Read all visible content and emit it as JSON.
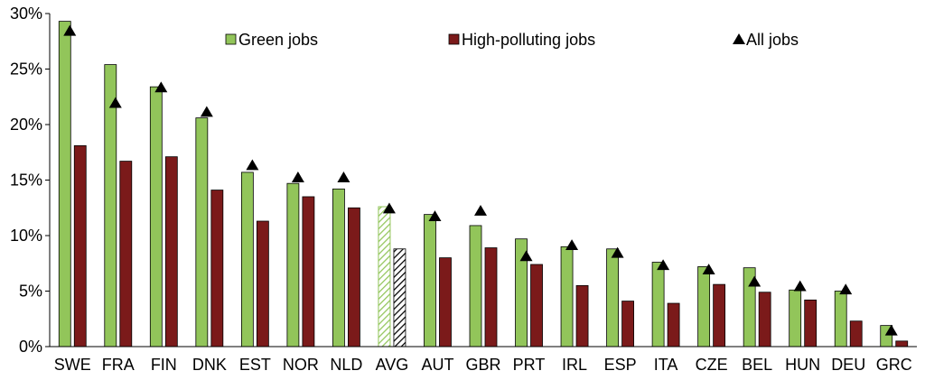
{
  "chart_data": {
    "type": "bar",
    "title": "",
    "xlabel": "",
    "ylabel": "",
    "ylim": [
      0,
      30
    ],
    "yticks": [
      "0%",
      "5%",
      "10%",
      "15%",
      "20%",
      "25%",
      "30%"
    ],
    "ytick_values": [
      0,
      5,
      10,
      15,
      20,
      25,
      30
    ],
    "grid": false,
    "legend_position": "top",
    "categories": [
      "SWE",
      "FRA",
      "FIN",
      "DNK",
      "EST",
      "NOR",
      "NLD",
      "AVG",
      "AUT",
      "GBR",
      "PRT",
      "IRL",
      "ESP",
      "ITA",
      "CZE",
      "BEL",
      "HUN",
      "DEU",
      "GRC"
    ],
    "highlight_category": "AVG",
    "series": [
      {
        "name": "Green jobs",
        "type": "bar",
        "color": "#92c55a",
        "values": [
          29.3,
          25.4,
          23.4,
          20.6,
          15.7,
          14.7,
          14.2,
          12.6,
          11.9,
          10.9,
          9.7,
          9.0,
          8.8,
          7.6,
          7.2,
          7.1,
          5.1,
          5.0,
          1.9
        ]
      },
      {
        "name": "High-polluting jobs",
        "type": "bar",
        "color": "#7b1a1a",
        "values": [
          18.1,
          16.7,
          17.1,
          14.1,
          11.3,
          13.5,
          12.5,
          8.8,
          8.0,
          8.9,
          7.4,
          5.5,
          4.1,
          3.9,
          5.6,
          4.9,
          4.2,
          2.3,
          0.5
        ]
      },
      {
        "name": "All jobs",
        "type": "marker",
        "marker": "triangle",
        "color": "#000000",
        "values": [
          28.4,
          21.9,
          23.3,
          21.1,
          16.3,
          15.2,
          15.2,
          12.4,
          11.7,
          12.2,
          8.1,
          9.1,
          8.4,
          7.3,
          6.9,
          5.8,
          5.4,
          5.1,
          1.4
        ]
      }
    ]
  }
}
